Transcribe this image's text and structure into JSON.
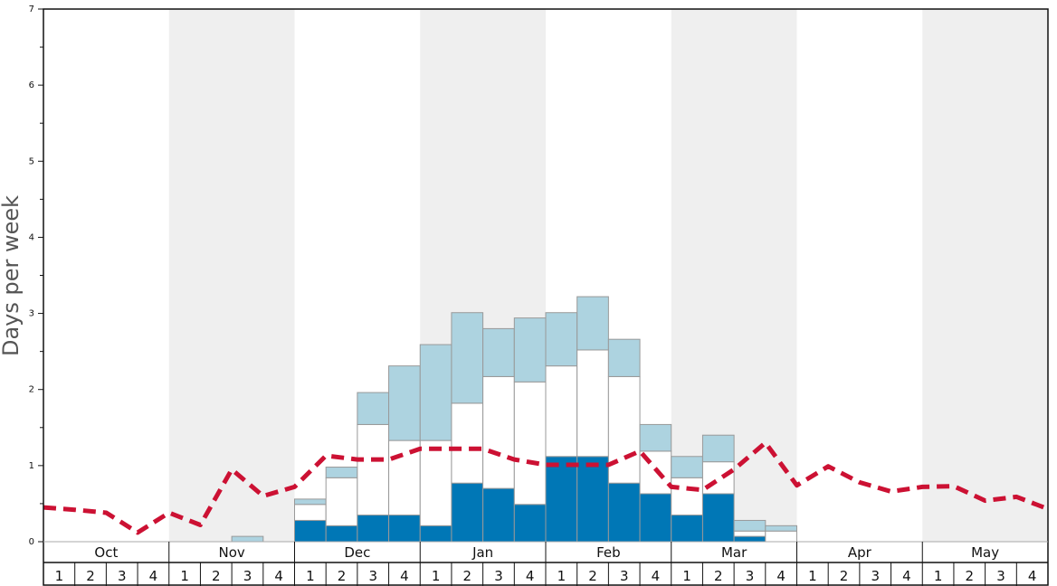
{
  "chart_data": {
    "type": "bar",
    "title": "",
    "ylabel": "Days per week",
    "ylim": [
      0,
      7
    ],
    "y_ticks": [
      "0",
      "1",
      "2",
      "3",
      "4",
      "5",
      "6",
      "7"
    ],
    "months": [
      "Oct",
      "Nov",
      "Dec",
      "Jan",
      "Feb",
      "Mar",
      "Apr",
      "May"
    ],
    "week_labels": [
      "1",
      "2",
      "3",
      "4"
    ],
    "stack_order_bottom_to_top": [
      "dark_blue",
      "white",
      "light_blue"
    ],
    "colors": {
      "dark_blue": "#0077b6",
      "white": "#ffffff",
      "light_blue": "#add3e0",
      "line": "#cc1133",
      "shade": "#efefef",
      "bar_border": "#999999"
    },
    "series": [
      {
        "key": "dark_blue",
        "values": [
          0,
          0,
          0,
          0,
          0,
          0,
          0,
          0,
          0.28,
          0.21,
          0.35,
          0.35,
          0.21,
          0.77,
          0.7,
          0.49,
          1.12,
          1.12,
          0.77,
          0.63,
          0.35,
          0.63,
          0.07,
          0,
          0,
          0,
          0,
          0,
          0,
          0,
          0,
          0
        ]
      },
      {
        "key": "white",
        "values": [
          0,
          0,
          0,
          0,
          0,
          0,
          0,
          0,
          0.21,
          0.63,
          1.19,
          0.98,
          1.12,
          1.05,
          1.47,
          1.61,
          1.19,
          1.4,
          1.4,
          0.56,
          0.49,
          0.42,
          0.07,
          0.14,
          0,
          0,
          0,
          0,
          0,
          0,
          0,
          0
        ]
      },
      {
        "key": "light_blue",
        "values": [
          0,
          0,
          0,
          0,
          0,
          0,
          0.07,
          0,
          0.07,
          0.14,
          0.42,
          0.98,
          1.26,
          1.19,
          0.63,
          0.84,
          0.7,
          0.7,
          0.49,
          0.35,
          0.28,
          0.35,
          0.14,
          0.07,
          0,
          0,
          0,
          0,
          0,
          0,
          0,
          0
        ]
      },
      {
        "key": "line",
        "values": [
          0.45,
          0.42,
          0.38,
          0.12,
          0.38,
          0.22,
          0.95,
          0.6,
          0.72,
          1.13,
          1.08,
          1.08,
          1.22,
          1.22,
          1.22,
          1.08,
          1.01,
          1.01,
          1.01,
          1.19,
          0.72,
          0.68,
          0.95,
          1.3,
          0.74,
          0.99,
          0.78,
          0.66,
          0.72,
          0.73,
          0.54,
          0.59,
          0.43
        ]
      }
    ]
  }
}
